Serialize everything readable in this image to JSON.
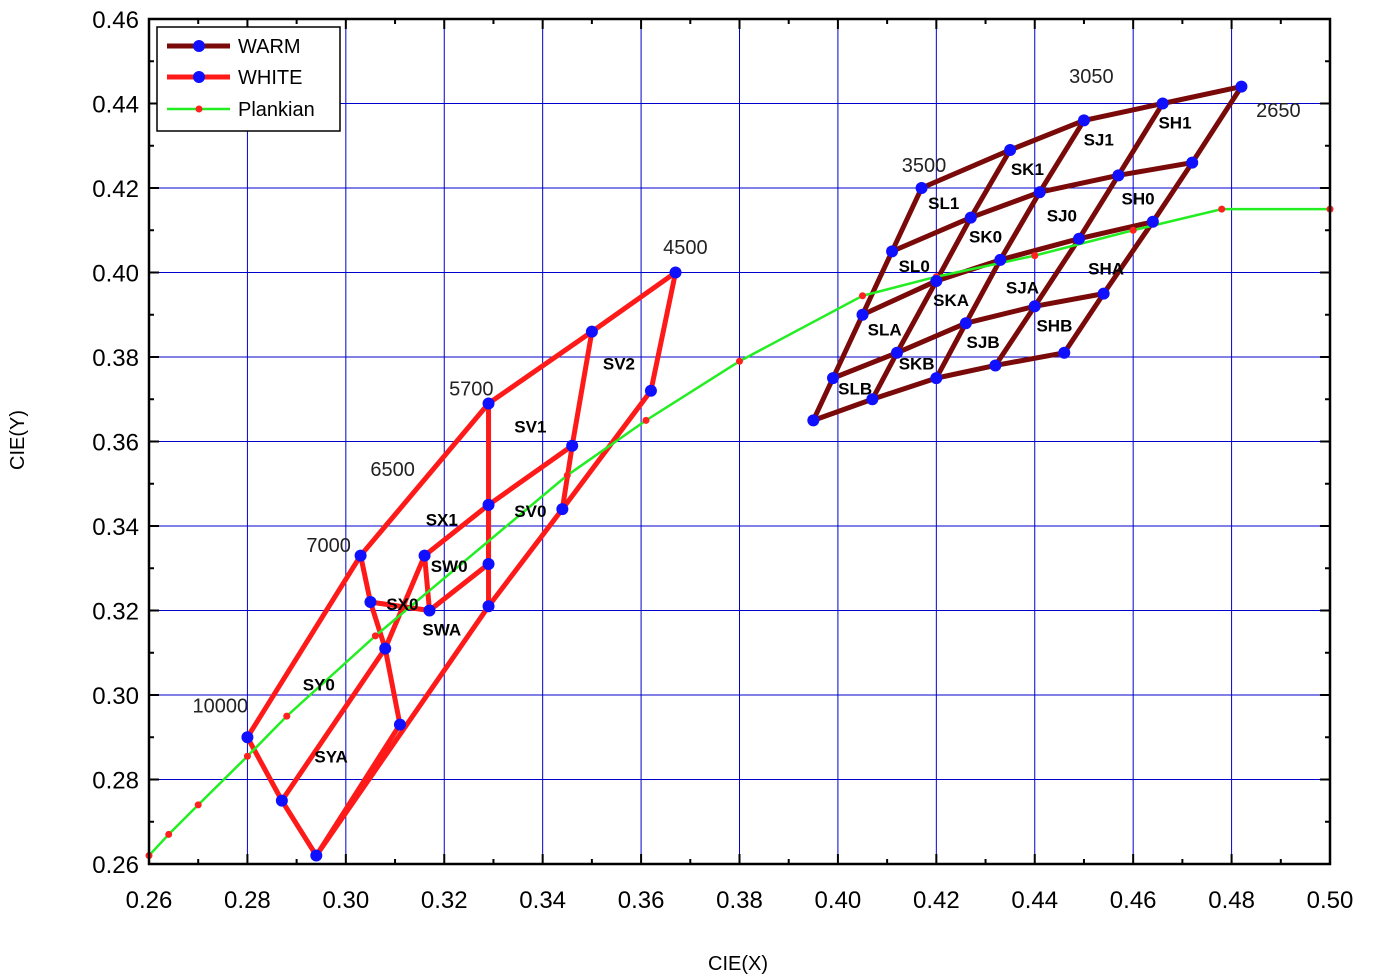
{
  "chart_data": {
    "type": "line",
    "xlabel": "CIE(X)",
    "ylabel": "CIE(Y)",
    "xlim": [
      0.26,
      0.5
    ],
    "ylim": [
      0.26,
      0.46
    ],
    "xticks": [
      "0.26",
      "0.28",
      "0.30",
      "0.32",
      "0.34",
      "0.36",
      "0.38",
      "0.40",
      "0.42",
      "0.44",
      "0.46",
      "0.48",
      "0.50"
    ],
    "yticks": [
      "0.26",
      "0.28",
      "0.30",
      "0.32",
      "0.34",
      "0.36",
      "0.38",
      "0.40",
      "0.42",
      "0.44",
      "0.46"
    ],
    "grid": true,
    "legend_position": "top-left",
    "colors": {
      "warm": "#7a0a0a",
      "white": "#ff1a1a",
      "plankian": "#22ee22",
      "point": "#1010ff",
      "plank_point": "#ff2020",
      "grid": "#0000cc"
    },
    "series": [
      {
        "name": "WARM",
        "segments": [
          [
            [
              0.395,
              0.365
            ],
            [
              0.407,
              0.37
            ],
            [
              0.42,
              0.375
            ],
            [
              0.432,
              0.378
            ],
            [
              0.446,
              0.381
            ]
          ],
          [
            [
              0.399,
              0.375
            ],
            [
              0.412,
              0.381
            ],
            [
              0.426,
              0.388
            ],
            [
              0.44,
              0.392
            ],
            [
              0.454,
              0.395
            ]
          ],
          [
            [
              0.405,
              0.39
            ],
            [
              0.42,
              0.398
            ],
            [
              0.433,
              0.403
            ],
            [
              0.449,
              0.408
            ],
            [
              0.464,
              0.412
            ]
          ],
          [
            [
              0.411,
              0.405
            ],
            [
              0.427,
              0.413
            ],
            [
              0.441,
              0.419
            ],
            [
              0.457,
              0.423
            ],
            [
              0.472,
              0.426
            ]
          ],
          [
            [
              0.417,
              0.42
            ],
            [
              0.435,
              0.429
            ],
            [
              0.45,
              0.436
            ],
            [
              0.466,
              0.44
            ],
            [
              0.482,
              0.444
            ]
          ],
          [
            [
              0.395,
              0.365
            ],
            [
              0.399,
              0.375
            ],
            [
              0.405,
              0.39
            ],
            [
              0.411,
              0.405
            ],
            [
              0.417,
              0.42
            ]
          ],
          [
            [
              0.407,
              0.37
            ],
            [
              0.412,
              0.381
            ],
            [
              0.42,
              0.398
            ],
            [
              0.427,
              0.413
            ],
            [
              0.435,
              0.429
            ]
          ],
          [
            [
              0.42,
              0.375
            ],
            [
              0.426,
              0.388
            ],
            [
              0.433,
              0.403
            ],
            [
              0.441,
              0.419
            ],
            [
              0.45,
              0.436
            ]
          ],
          [
            [
              0.432,
              0.378
            ],
            [
              0.44,
              0.392
            ],
            [
              0.449,
              0.408
            ],
            [
              0.457,
              0.423
            ],
            [
              0.466,
              0.44
            ]
          ],
          [
            [
              0.446,
              0.381
            ],
            [
              0.454,
              0.395
            ],
            [
              0.464,
              0.412
            ],
            [
              0.472,
              0.426
            ],
            [
              0.482,
              0.444
            ]
          ]
        ]
      },
      {
        "name": "WHITE",
        "segments": [
          [
            [
              0.28,
              0.29
            ],
            [
              0.303,
              0.333
            ],
            [
              0.329,
              0.369
            ],
            [
              0.35,
              0.386
            ],
            [
              0.367,
              0.4
            ],
            [
              0.362,
              0.372
            ],
            [
              0.344,
              0.344
            ],
            [
              0.329,
              0.321
            ],
            [
              0.294,
              0.262
            ],
            [
              0.287,
              0.275
            ],
            [
              0.28,
              0.29
            ]
          ],
          [
            [
              0.329,
              0.369
            ],
            [
              0.329,
              0.321
            ]
          ],
          [
            [
              0.287,
              0.275
            ],
            [
              0.308,
              0.311
            ],
            [
              0.316,
              0.333
            ],
            [
              0.329,
              0.345
            ],
            [
              0.346,
              0.359
            ],
            [
              0.35,
              0.386
            ]
          ],
          [
            [
              0.346,
              0.359
            ],
            [
              0.344,
              0.344
            ]
          ],
          [
            [
              0.303,
              0.333
            ],
            [
              0.305,
              0.322
            ],
            [
              0.317,
              0.32
            ],
            [
              0.329,
              0.331
            ]
          ],
          [
            [
              0.305,
              0.322
            ],
            [
              0.308,
              0.311
            ],
            [
              0.311,
              0.293
            ],
            [
              0.294,
              0.262
            ]
          ],
          [
            [
              0.316,
              0.333
            ],
            [
              0.317,
              0.32
            ]
          ],
          [
            [
              0.329,
              0.345
            ],
            [
              0.329,
              0.331
            ]
          ]
        ]
      },
      {
        "name": "Plankian",
        "points": [
          [
            0.26,
            0.262
          ],
          [
            0.264,
            0.267
          ],
          [
            0.27,
            0.274
          ],
          [
            0.28,
            0.2855
          ],
          [
            0.288,
            0.295
          ],
          [
            0.306,
            0.314
          ],
          [
            0.345,
            0.352
          ],
          [
            0.361,
            0.365
          ],
          [
            0.38,
            0.379
          ],
          [
            0.405,
            0.3945
          ],
          [
            0.42,
            0.399
          ],
          [
            0.44,
            0.404
          ],
          [
            0.46,
            0.41
          ],
          [
            0.478,
            0.415
          ],
          [
            0.5,
            0.415
          ]
        ]
      }
    ],
    "bin_labels": [
      {
        "text": "SV2",
        "x": 0.3555,
        "y": 0.3785
      },
      {
        "text": "SV1",
        "x": 0.3375,
        "y": 0.3635
      },
      {
        "text": "SV0",
        "x": 0.3375,
        "y": 0.3435
      },
      {
        "text": "SX1",
        "x": 0.3195,
        "y": 0.3415
      },
      {
        "text": "SW0",
        "x": 0.321,
        "y": 0.3305
      },
      {
        "text": "SX0",
        "x": 0.3115,
        "y": 0.3215
      },
      {
        "text": "SWA",
        "x": 0.3195,
        "y": 0.3155
      },
      {
        "text": "SY0",
        "x": 0.2945,
        "y": 0.3025
      },
      {
        "text": "SYA",
        "x": 0.297,
        "y": 0.2855
      },
      {
        "text": "SL1",
        "x": 0.4215,
        "y": 0.4165
      },
      {
        "text": "SK1",
        "x": 0.4385,
        "y": 0.4245
      },
      {
        "text": "SJ1",
        "x": 0.453,
        "y": 0.4315
      },
      {
        "text": "SH1",
        "x": 0.4685,
        "y": 0.4355
      },
      {
        "text": "SL0",
        "x": 0.4155,
        "y": 0.4015
      },
      {
        "text": "SK0",
        "x": 0.43,
        "y": 0.4085
      },
      {
        "text": "SJ0",
        "x": 0.4455,
        "y": 0.4135
      },
      {
        "text": "SH0",
        "x": 0.461,
        "y": 0.4175
      },
      {
        "text": "SKA",
        "x": 0.423,
        "y": 0.3935
      },
      {
        "text": "SJA",
        "x": 0.4375,
        "y": 0.3965
      },
      {
        "text": "SHA",
        "x": 0.4545,
        "y": 0.401
      },
      {
        "text": "SLA",
        "x": 0.4095,
        "y": 0.3865
      },
      {
        "text": "SJB",
        "x": 0.4295,
        "y": 0.3835
      },
      {
        "text": "SHB",
        "x": 0.444,
        "y": 0.3875
      },
      {
        "text": "SKB",
        "x": 0.416,
        "y": 0.3785
      },
      {
        "text": "SLB",
        "x": 0.4035,
        "y": 0.3725
      }
    ],
    "cct_labels": [
      {
        "text": "4500",
        "x": 0.369,
        "y": 0.406
      },
      {
        "text": "5700",
        "x": 0.3255,
        "y": 0.3725
      },
      {
        "text": "6500",
        "x": 0.3095,
        "y": 0.3535
      },
      {
        "text": "7000",
        "x": 0.2965,
        "y": 0.3355
      },
      {
        "text": "10000",
        "x": 0.2745,
        "y": 0.2975
      },
      {
        "text": "3500",
        "x": 0.4175,
        "y": 0.4255
      },
      {
        "text": "3050",
        "x": 0.4515,
        "y": 0.4465
      },
      {
        "text": "2650",
        "x": 0.4895,
        "y": 0.4385
      }
    ]
  }
}
